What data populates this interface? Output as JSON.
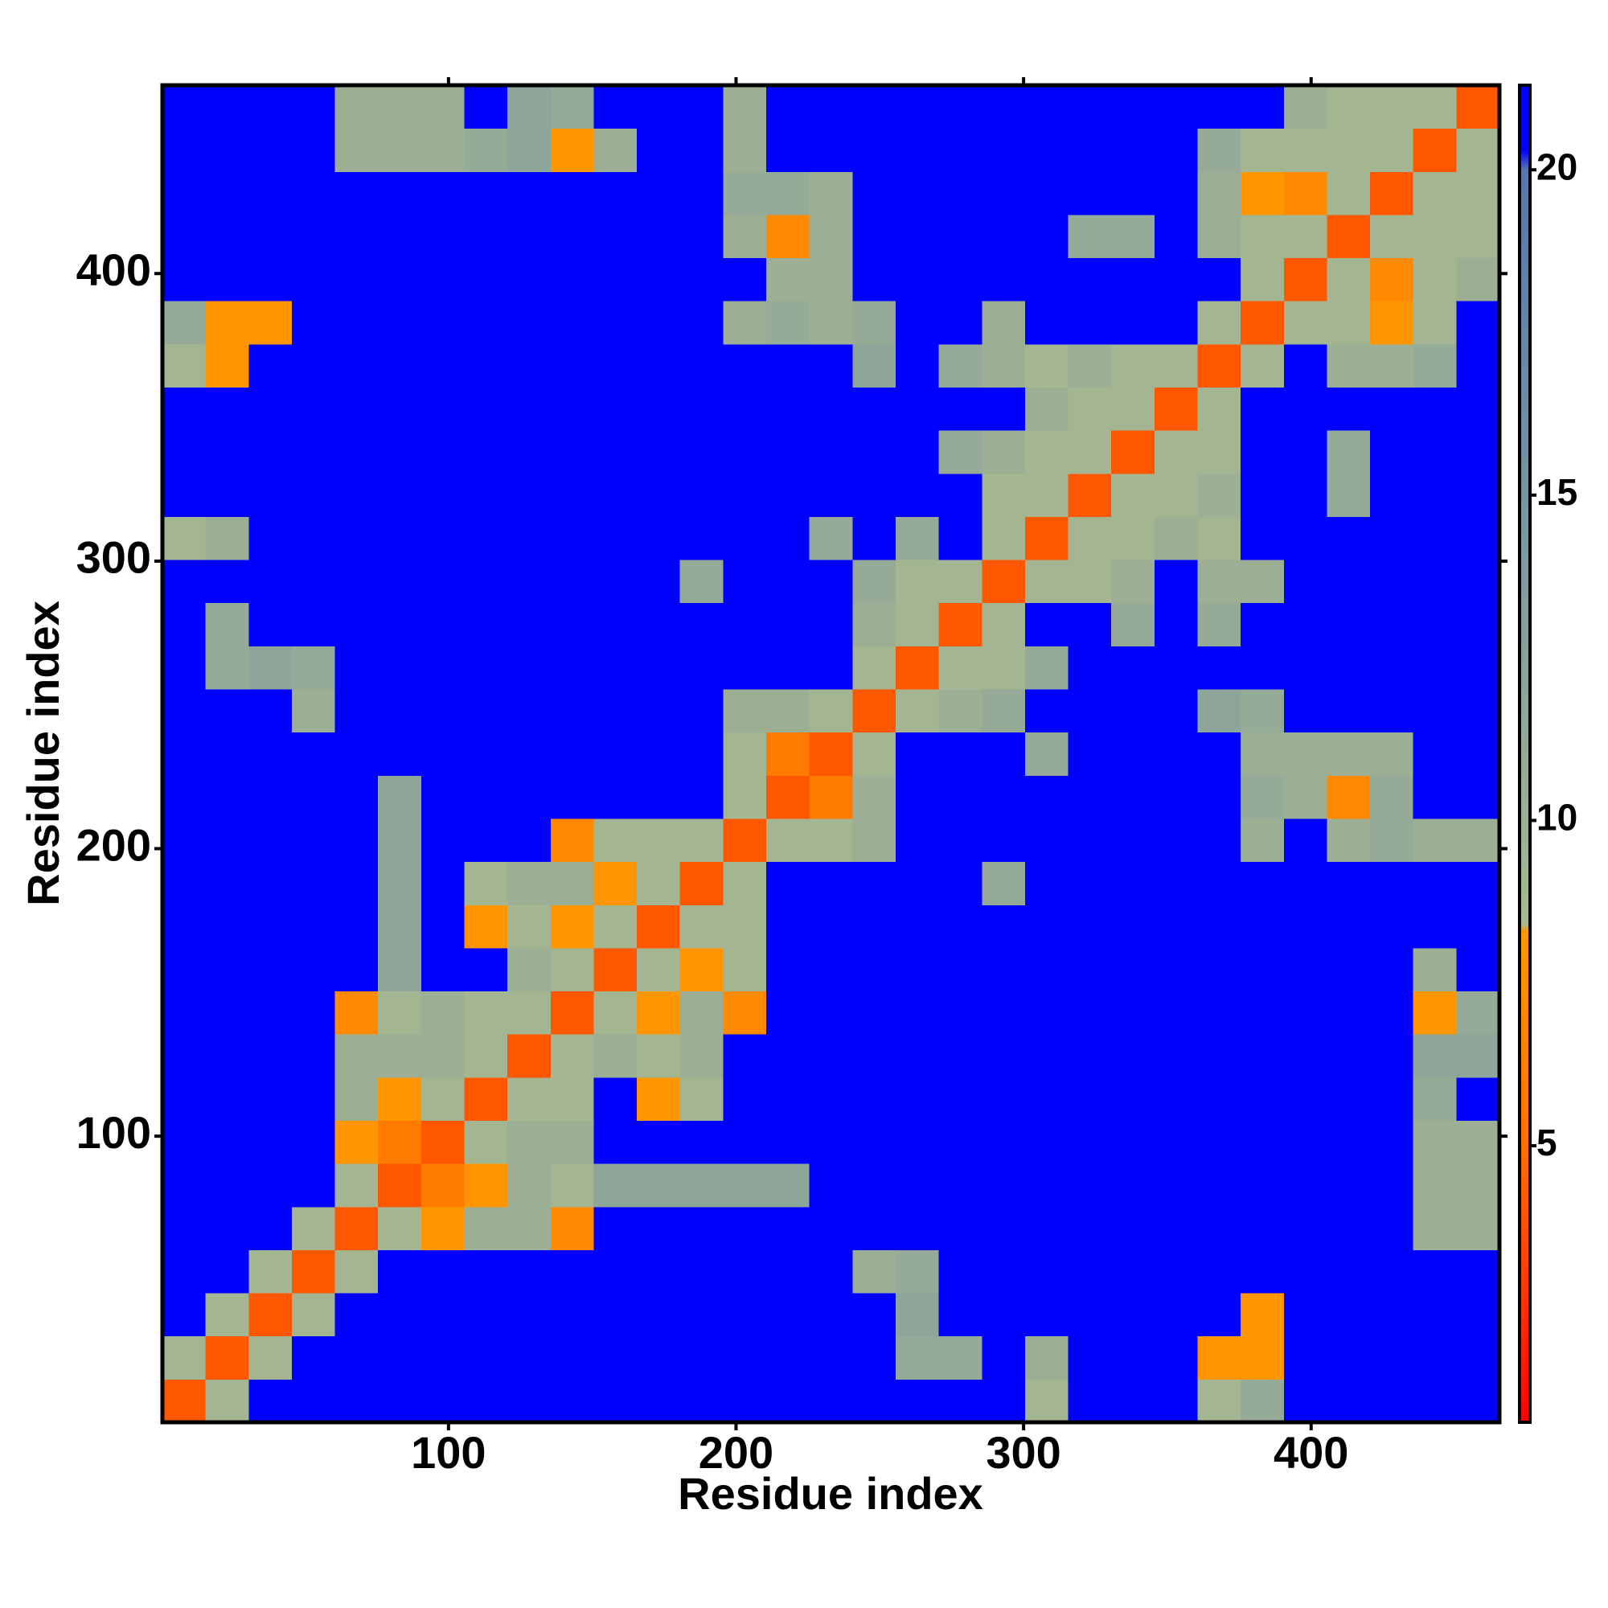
{
  "chart_data": {
    "type": "heatmap",
    "x": [
      8,
      23,
      38,
      53,
      68,
      83,
      98,
      113,
      128,
      143,
      158,
      173,
      188,
      203,
      218,
      233,
      248,
      263,
      278,
      293,
      308,
      323,
      338,
      353,
      368,
      383,
      398,
      413,
      428,
      443,
      458
    ],
    "y": [
      8,
      23,
      38,
      53,
      68,
      83,
      98,
      113,
      128,
      143,
      158,
      173,
      188,
      203,
      218,
      233,
      248,
      263,
      278,
      293,
      308,
      323,
      338,
      353,
      368,
      383,
      398,
      413,
      428,
      443,
      458
    ],
    "values": [
      [
        4,
        9,
        21,
        21,
        21,
        21,
        21,
        21,
        21,
        21,
        21,
        21,
        21,
        21,
        21,
        21,
        21,
        21,
        21,
        21,
        9,
        21,
        21,
        21,
        9,
        11,
        21,
        21,
        21,
        21,
        21
      ],
      [
        9,
        4,
        9,
        21,
        21,
        21,
        21,
        21,
        21,
        21,
        21,
        21,
        21,
        21,
        21,
        21,
        21,
        11,
        11,
        21,
        10,
        21,
        21,
        21,
        8,
        8,
        21,
        21,
        21,
        21,
        21
      ],
      [
        21,
        9,
        4,
        9,
        21,
        21,
        21,
        21,
        21,
        21,
        21,
        21,
        21,
        21,
        21,
        21,
        21,
        12,
        21,
        21,
        21,
        21,
        21,
        21,
        21,
        8,
        21,
        21,
        21,
        21,
        21
      ],
      [
        21,
        21,
        9,
        4,
        9,
        21,
        21,
        21,
        21,
        21,
        21,
        21,
        21,
        21,
        21,
        21,
        10,
        11,
        21,
        21,
        21,
        21,
        21,
        21,
        21,
        21,
        21,
        21,
        21,
        21,
        21
      ],
      [
        21,
        21,
        21,
        9,
        4,
        9,
        8,
        10,
        10,
        7,
        21,
        21,
        21,
        21,
        21,
        21,
        21,
        21,
        21,
        21,
        21,
        21,
        21,
        21,
        21,
        21,
        21,
        21,
        21,
        10,
        10
      ],
      [
        21,
        21,
        21,
        21,
        9,
        4,
        6,
        8,
        10,
        9,
        12,
        12,
        12,
        12,
        12,
        21,
        21,
        21,
        21,
        21,
        21,
        21,
        21,
        21,
        21,
        21,
        21,
        21,
        21,
        10,
        10
      ],
      [
        21,
        21,
        21,
        21,
        8,
        6,
        4,
        9,
        10,
        10,
        21,
        21,
        21,
        21,
        21,
        21,
        21,
        21,
        21,
        21,
        21,
        21,
        21,
        21,
        21,
        21,
        21,
        21,
        21,
        10,
        10
      ],
      [
        21,
        21,
        21,
        21,
        10,
        8,
        9,
        4,
        9,
        9,
        21,
        8,
        9,
        21,
        21,
        21,
        21,
        21,
        21,
        21,
        21,
        21,
        21,
        21,
        21,
        21,
        21,
        21,
        21,
        11,
        21
      ],
      [
        21,
        21,
        21,
        21,
        10,
        10,
        10,
        9,
        4,
        9,
        10,
        9,
        10,
        21,
        21,
        21,
        21,
        21,
        21,
        21,
        21,
        21,
        21,
        21,
        21,
        21,
        21,
        21,
        21,
        12,
        12
      ],
      [
        21,
        21,
        21,
        21,
        7,
        9,
        10,
        9,
        9,
        4,
        9,
        8,
        10,
        7,
        21,
        21,
        21,
        21,
        21,
        21,
        21,
        21,
        21,
        21,
        21,
        21,
        21,
        21,
        21,
        8,
        11
      ],
      [
        21,
        21,
        21,
        21,
        21,
        12,
        21,
        21,
        10,
        9,
        4,
        9,
        8,
        9,
        21,
        21,
        21,
        21,
        21,
        21,
        21,
        21,
        21,
        21,
        21,
        21,
        21,
        21,
        21,
        10,
        21
      ],
      [
        21,
        21,
        21,
        21,
        21,
        12,
        21,
        8,
        9,
        8,
        9,
        4,
        9,
        9,
        21,
        21,
        21,
        21,
        21,
        21,
        21,
        21,
        21,
        21,
        21,
        21,
        21,
        21,
        21,
        21,
        21
      ],
      [
        21,
        21,
        21,
        21,
        21,
        12,
        21,
        9,
        10,
        10,
        8,
        9,
        4,
        9,
        21,
        21,
        21,
        21,
        21,
        11,
        21,
        21,
        21,
        21,
        21,
        21,
        21,
        21,
        21,
        21,
        21
      ],
      [
        21,
        21,
        21,
        21,
        21,
        12,
        21,
        21,
        21,
        7,
        9,
        9,
        9,
        4,
        9,
        9,
        10,
        21,
        21,
        21,
        21,
        21,
        21,
        21,
        21,
        10,
        21,
        10,
        11,
        10,
        10
      ],
      [
        21,
        21,
        21,
        21,
        21,
        12,
        21,
        21,
        21,
        21,
        21,
        21,
        21,
        9,
        4,
        6,
        10,
        21,
        21,
        21,
        21,
        21,
        21,
        21,
        21,
        11,
        10,
        7,
        11,
        21,
        21
      ],
      [
        21,
        21,
        21,
        21,
        21,
        21,
        21,
        21,
        21,
        21,
        21,
        21,
        21,
        9,
        6,
        4,
        9,
        21,
        21,
        21,
        11,
        21,
        21,
        21,
        21,
        10,
        10,
        10,
        10,
        21,
        21
      ],
      [
        21,
        21,
        21,
        10,
        21,
        21,
        21,
        21,
        21,
        21,
        21,
        21,
        21,
        10,
        10,
        9,
        4,
        9,
        10,
        11,
        21,
        21,
        21,
        21,
        12,
        11,
        21,
        21,
        21,
        21,
        21
      ],
      [
        21,
        11,
        12,
        11,
        21,
        21,
        21,
        21,
        21,
        21,
        21,
        21,
        21,
        21,
        21,
        21,
        9,
        4,
        9,
        9,
        11,
        21,
        21,
        21,
        21,
        21,
        21,
        21,
        21,
        21,
        21
      ],
      [
        21,
        11,
        21,
        21,
        21,
        21,
        21,
        21,
        21,
        21,
        21,
        21,
        21,
        21,
        21,
        21,
        10,
        9,
        4,
        9,
        21,
        21,
        11,
        21,
        11,
        21,
        21,
        21,
        21,
        21,
        21
      ],
      [
        21,
        21,
        21,
        21,
        21,
        21,
        21,
        21,
        21,
        21,
        21,
        21,
        11,
        21,
        21,
        21,
        11,
        9,
        9,
        4,
        9,
        9,
        10,
        21,
        10,
        10,
        21,
        21,
        21,
        21,
        21
      ],
      [
        9,
        10,
        21,
        21,
        21,
        21,
        21,
        21,
        21,
        21,
        21,
        21,
        21,
        21,
        21,
        11,
        21,
        11,
        21,
        9,
        4,
        9,
        9,
        10,
        9,
        21,
        21,
        21,
        21,
        21,
        21
      ],
      [
        21,
        21,
        21,
        21,
        21,
        21,
        21,
        21,
        21,
        21,
        21,
        21,
        21,
        21,
        21,
        21,
        21,
        21,
        21,
        9,
        9,
        4,
        9,
        9,
        10,
        21,
        21,
        11,
        21,
        21,
        21
      ],
      [
        21,
        21,
        21,
        21,
        21,
        21,
        21,
        21,
        21,
        21,
        21,
        21,
        21,
        21,
        21,
        21,
        21,
        21,
        11,
        10,
        9,
        9,
        4,
        9,
        9,
        21,
        21,
        11,
        21,
        21,
        21
      ],
      [
        21,
        21,
        21,
        21,
        21,
        21,
        21,
        21,
        21,
        21,
        21,
        21,
        21,
        21,
        21,
        21,
        21,
        21,
        21,
        21,
        10,
        9,
        9,
        4,
        9,
        21,
        21,
        21,
        21,
        21,
        21
      ],
      [
        9,
        8,
        21,
        21,
        21,
        21,
        21,
        21,
        21,
        21,
        21,
        21,
        21,
        21,
        21,
        21,
        12,
        21,
        11,
        10,
        9,
        10,
        9,
        9,
        4,
        9,
        21,
        10,
        10,
        11,
        21
      ],
      [
        11,
        8,
        8,
        21,
        21,
        21,
        21,
        21,
        21,
        21,
        21,
        21,
        21,
        10,
        11,
        10,
        11,
        21,
        21,
        10,
        21,
        21,
        21,
        21,
        9,
        4,
        9,
        9,
        8,
        9,
        21
      ],
      [
        21,
        21,
        21,
        21,
        21,
        21,
        21,
        21,
        21,
        21,
        21,
        21,
        21,
        21,
        10,
        10,
        21,
        21,
        21,
        21,
        21,
        21,
        21,
        21,
        21,
        9,
        4,
        9,
        7,
        9,
        10
      ],
      [
        21,
        21,
        21,
        21,
        21,
        21,
        21,
        21,
        21,
        21,
        21,
        21,
        21,
        10,
        7,
        10,
        21,
        21,
        21,
        21,
        21,
        11,
        11,
        21,
        10,
        9,
        9,
        4,
        9,
        9,
        9
      ],
      [
        21,
        21,
        21,
        21,
        21,
        21,
        21,
        21,
        21,
        21,
        21,
        21,
        21,
        11,
        11,
        10,
        21,
        21,
        21,
        21,
        21,
        21,
        21,
        21,
        10,
        8,
        7,
        9,
        4,
        9,
        9
      ],
      [
        21,
        21,
        21,
        21,
        10,
        10,
        10,
        11,
        12,
        8,
        10,
        21,
        21,
        10,
        21,
        21,
        21,
        21,
        21,
        21,
        21,
        21,
        21,
        21,
        11,
        9,
        9,
        9,
        9,
        4,
        9
      ],
      [
        21,
        21,
        21,
        21,
        10,
        10,
        10,
        21,
        12,
        11,
        21,
        21,
        21,
        10,
        21,
        21,
        21,
        21,
        21,
        21,
        21,
        21,
        21,
        21,
        21,
        21,
        10,
        9,
        9,
        9,
        4
      ]
    ],
    "xlabel": "Residue index",
    "ylabel": "Residue index",
    "xlim": [
      0.5,
      465.5
    ],
    "ylim": [
      0.5,
      465.5
    ],
    "xticks": [
      100,
      200,
      300,
      400
    ],
    "yticks": [
      100,
      200,
      300,
      400
    ],
    "colorbar": {
      "lim": [
        0.75,
        21.3
      ],
      "ticks": [
        5,
        10,
        15,
        20
      ],
      "colorscale": [
        [
          0.75,
          "#ff0000"
        ],
        [
          2.5,
          "#ff3000"
        ],
        [
          5,
          "#ff7000"
        ],
        [
          8.3,
          "#ff9900"
        ],
        [
          8.4,
          "#a8b890"
        ],
        [
          14,
          "#7f9aa0"
        ],
        [
          20,
          "#5577aa"
        ],
        [
          20.3,
          "#0000ff"
        ]
      ]
    }
  }
}
